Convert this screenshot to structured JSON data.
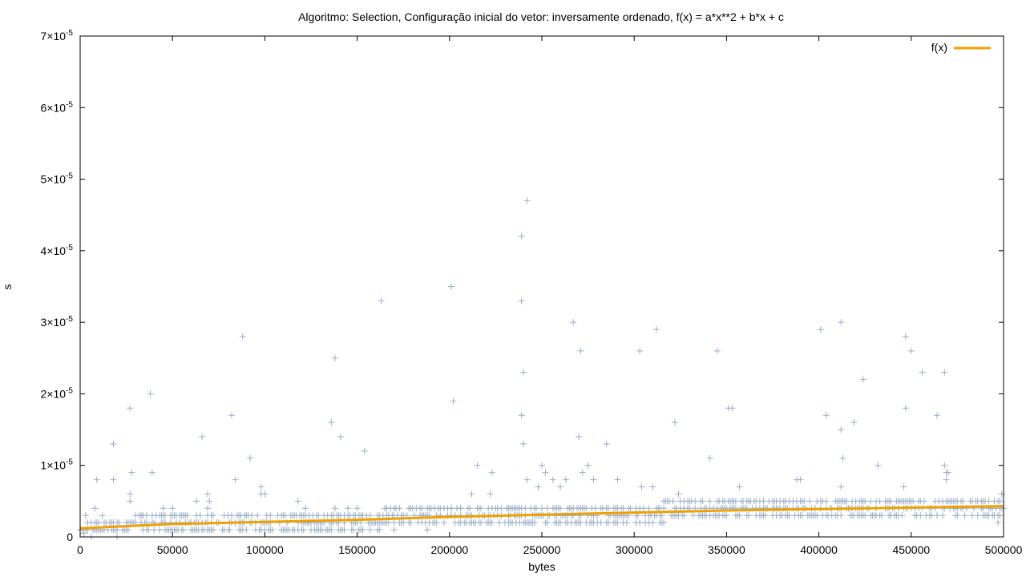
{
  "chart_data": {
    "type": "scatter",
    "title": "Algoritmo: Selection, Configuração inicial do vetor: inversamente ordenado, f(x) = a*x**2 + b*x + c",
    "xlabel": "bytes",
    "ylabel": "s",
    "xlim": [
      0,
      500000
    ],
    "ylim": [
      0,
      7e-05
    ],
    "x_ticks": [
      {
        "value": 0,
        "label": "0"
      },
      {
        "value": 50000,
        "label": "50000"
      },
      {
        "value": 100000,
        "label": "100000"
      },
      {
        "value": 150000,
        "label": "150000"
      },
      {
        "value": 200000,
        "label": "200000"
      },
      {
        "value": 250000,
        "label": "250000"
      },
      {
        "value": 300000,
        "label": "300000"
      },
      {
        "value": 350000,
        "label": "350000"
      },
      {
        "value": 400000,
        "label": "400000"
      },
      {
        "value": 450000,
        "label": "450000"
      },
      {
        "value": 500000,
        "label": "500000"
      }
    ],
    "y_ticks": [
      {
        "value": 0,
        "mant": "0",
        "exp": ""
      },
      {
        "value": 1e-05,
        "mant": "1×10",
        "exp": "-5"
      },
      {
        "value": 2e-05,
        "mant": "2×10",
        "exp": "-5"
      },
      {
        "value": 3e-05,
        "mant": "3×10",
        "exp": "-5"
      },
      {
        "value": 4e-05,
        "mant": "4×10",
        "exp": "-5"
      },
      {
        "value": 5e-05,
        "mant": "5×10",
        "exp": "-5"
      },
      {
        "value": 6e-05,
        "mant": "6×10",
        "exp": "-5"
      },
      {
        "value": 7e-05,
        "mant": "7×10",
        "exp": "-5"
      }
    ],
    "grid": false,
    "legend_position": "top-right",
    "legend": [
      {
        "label": "f(x)",
        "color": "#f0a000"
      }
    ],
    "colors": {
      "points": "#9aaec8",
      "fit": "#f0a000"
    },
    "point_marker": "plus",
    "fit_line": {
      "label": "f(x)",
      "x": [
        0,
        50000,
        100000,
        150000,
        200000,
        250000,
        300000,
        350000,
        400000,
        450000,
        500000
      ],
      "y": [
        1.2e-06,
        1.8e-06,
        2.1e-06,
        2.4e-06,
        2.8e-06,
        3.1e-06,
        3.4e-06,
        3.7e-06,
        3.9e-06,
        4.1e-06,
        4.3e-06
      ]
    },
    "series": [
      {
        "points": [
          [
            1000,
            1e-06
          ],
          [
            2000,
            5e-07
          ],
          [
            3000,
            3e-06
          ],
          [
            8000,
            4e-06
          ],
          [
            9000,
            8e-06
          ],
          [
            12000,
            3e-06
          ],
          [
            18000,
            1.3e-05
          ],
          [
            18000,
            8e-06
          ],
          [
            27000,
            1.8e-05
          ],
          [
            27000,
            6e-06
          ],
          [
            27000,
            5e-06
          ],
          [
            28000,
            9e-06
          ],
          [
            34000,
            3e-06
          ],
          [
            38000,
            2e-05
          ],
          [
            39000,
            9e-06
          ],
          [
            45000,
            4e-06
          ],
          [
            50000,
            4e-06
          ],
          [
            56000,
            3e-06
          ],
          [
            63000,
            5e-06
          ],
          [
            66000,
            1.4e-05
          ],
          [
            69000,
            6e-06
          ],
          [
            69000,
            4e-06
          ],
          [
            70000,
            5e-06
          ],
          [
            82000,
            1.7e-05
          ],
          [
            84000,
            8e-06
          ],
          [
            88000,
            2.8e-05
          ],
          [
            92000,
            1.1e-05
          ],
          [
            98000,
            7e-06
          ],
          [
            98000,
            6e-06
          ],
          [
            100000,
            6e-06
          ],
          [
            118000,
            5e-06
          ],
          [
            122000,
            4e-06
          ],
          [
            136000,
            1.6e-05
          ],
          [
            138000,
            2.5e-05
          ],
          [
            138000,
            4e-06
          ],
          [
            141000,
            1.4e-05
          ],
          [
            145000,
            4e-06
          ],
          [
            150000,
            4e-06
          ],
          [
            154000,
            1.2e-05
          ],
          [
            163000,
            3.3e-05
          ],
          [
            170000,
            1e-06
          ],
          [
            178000,
            4e-06
          ],
          [
            182000,
            4e-06
          ],
          [
            188000,
            1e-06
          ],
          [
            201000,
            3.5e-05
          ],
          [
            202000,
            1.9e-05
          ],
          [
            201000,
            4e-06
          ],
          [
            206000,
            4e-06
          ],
          [
            212000,
            6e-06
          ],
          [
            215000,
            1e-05
          ],
          [
            222000,
            6e-06
          ],
          [
            223000,
            9e-06
          ],
          [
            228000,
            4e-06
          ],
          [
            232000,
            4e-06
          ],
          [
            239000,
            4.2e-05
          ],
          [
            239000,
            3.3e-05
          ],
          [
            239000,
            1.7e-05
          ],
          [
            240000,
            1.3e-05
          ],
          [
            240000,
            2.3e-05
          ],
          [
            242000,
            4.7e-05
          ],
          [
            242000,
            8e-06
          ],
          [
            248000,
            7e-06
          ],
          [
            250000,
            1e-05
          ],
          [
            252000,
            9e-06
          ],
          [
            256000,
            8e-06
          ],
          [
            260000,
            7e-06
          ],
          [
            263000,
            8e-06
          ],
          [
            267000,
            3e-05
          ],
          [
            270000,
            1.4e-05
          ],
          [
            271000,
            2.6e-05
          ],
          [
            272000,
            9e-06
          ],
          [
            275000,
            1e-05
          ],
          [
            278000,
            8e-06
          ],
          [
            285000,
            1.3e-05
          ],
          [
            291000,
            8e-06
          ],
          [
            298000,
            4e-06
          ],
          [
            303000,
            2.6e-05
          ],
          [
            304000,
            7e-06
          ],
          [
            310000,
            7e-06
          ],
          [
            312000,
            2.9e-05
          ],
          [
            316000,
            5e-06
          ],
          [
            322000,
            1.6e-05
          ],
          [
            324000,
            6e-06
          ],
          [
            341000,
            1.1e-05
          ],
          [
            345000,
            2.6e-05
          ],
          [
            351000,
            1.8e-05
          ],
          [
            353000,
            1.8e-05
          ],
          [
            353000,
            5e-06
          ],
          [
            357000,
            7e-06
          ],
          [
            388000,
            8e-06
          ],
          [
            390000,
            8e-06
          ],
          [
            401000,
            2.9e-05
          ],
          [
            404000,
            1.7e-05
          ],
          [
            412000,
            3e-05
          ],
          [
            412000,
            1.5e-05
          ],
          [
            413000,
            1.1e-05
          ],
          [
            412000,
            7e-06
          ],
          [
            419000,
            1.6e-05
          ],
          [
            424000,
            2.2e-05
          ],
          [
            432000,
            1e-05
          ],
          [
            446000,
            7e-06
          ],
          [
            447000,
            2.8e-05
          ],
          [
            447000,
            1.8e-05
          ],
          [
            450000,
            2.6e-05
          ],
          [
            456000,
            2.3e-05
          ],
          [
            464000,
            1.7e-05
          ],
          [
            468000,
            2.3e-05
          ],
          [
            468000,
            1e-05
          ],
          [
            469000,
            9e-06
          ],
          [
            469000,
            8e-06
          ],
          [
            470000,
            9e-06
          ],
          [
            497000,
            2e-06
          ],
          [
            499000,
            6e-06
          ]
        ]
      }
    ]
  }
}
